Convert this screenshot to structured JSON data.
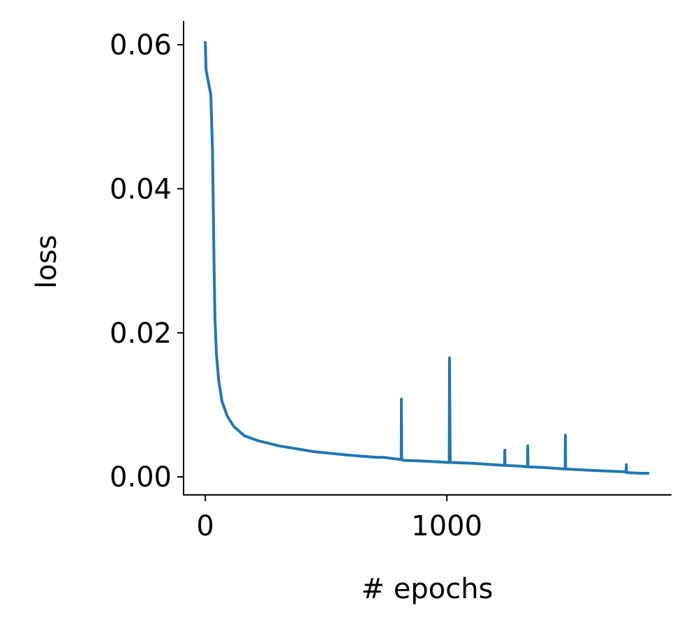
{
  "chart_data": {
    "type": "line",
    "title": "",
    "xlabel": "# epochs",
    "ylabel": "loss",
    "xlim": [
      -90,
      1930
    ],
    "ylim": [
      -0.0025,
      0.0633
    ],
    "xticks": [
      0,
      1000
    ],
    "xtick_labels": [
      "0",
      "1000"
    ],
    "yticks": [
      0.0,
      0.02,
      0.04,
      0.06
    ],
    "ytick_labels": [
      "0.00",
      "0.02",
      "0.04",
      "0.06"
    ],
    "grid": false,
    "line_color": "#1f77b4",
    "series": [
      {
        "x": [
          0,
          3,
          23,
          30,
          36,
          40,
          46,
          55,
          69,
          90,
          118,
          162,
          220,
          306,
          450,
          600,
          711,
          740,
          811,
          812,
          813,
          820,
          900,
          1010,
          1011,
          1014,
          1020,
          1100,
          1239,
          1240,
          1241,
          1300,
          1334,
          1335,
          1336,
          1400,
          1490,
          1491,
          1492,
          1600,
          1742,
          1743,
          1744,
          1800,
          1838
        ],
        "y": [
          0.0605,
          0.0565,
          0.053,
          0.045,
          0.03,
          0.022,
          0.017,
          0.0135,
          0.0105,
          0.0085,
          0.007,
          0.0057,
          0.005,
          0.0043,
          0.0035,
          0.003,
          0.0027,
          0.0027,
          0.0024,
          0.0108,
          0.0024,
          0.0023,
          0.0022,
          0.002,
          0.0165,
          0.0021,
          0.002,
          0.0019,
          0.0016,
          0.0037,
          0.0016,
          0.0015,
          0.0014,
          0.0043,
          0.0014,
          0.0013,
          0.0011,
          0.0058,
          0.0011,
          0.0009,
          0.0007,
          0.0017,
          0.0006,
          0.0005,
          0.0005
        ]
      }
    ]
  }
}
